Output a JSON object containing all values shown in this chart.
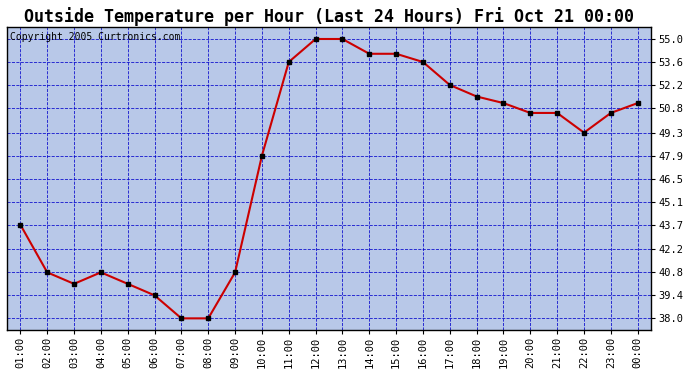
{
  "title": "Outside Temperature per Hour (Last 24 Hours) Fri Oct 21 00:00",
  "copyright": "Copyright 2005 Curtronics.com",
  "hours": [
    "01:00",
    "02:00",
    "03:00",
    "04:00",
    "05:00",
    "06:00",
    "07:00",
    "08:00",
    "09:00",
    "10:00",
    "11:00",
    "12:00",
    "13:00",
    "14:00",
    "15:00",
    "16:00",
    "17:00",
    "18:00",
    "19:00",
    "20:00",
    "21:00",
    "22:00",
    "23:00",
    "00:00"
  ],
  "temps": [
    43.7,
    40.8,
    40.1,
    40.8,
    40.1,
    39.4,
    38.0,
    38.0,
    40.8,
    47.9,
    53.6,
    55.0,
    55.0,
    54.1,
    54.1,
    53.6,
    52.2,
    51.5,
    51.1,
    50.5,
    50.5,
    49.3,
    50.5,
    51.1
  ],
  "line_color": "#cc0000",
  "marker_color": "#000000",
  "bg_color": "#ffffff",
  "plot_bg_color": "#b8c8e8",
  "grid_color": "#0000cc",
  "title_fontsize": 12,
  "copyright_fontsize": 7,
  "yticks": [
    38.0,
    39.4,
    40.8,
    42.2,
    43.7,
    45.1,
    46.5,
    47.9,
    49.3,
    50.8,
    52.2,
    53.6,
    55.0
  ],
  "ylim": [
    37.3,
    55.7
  ],
  "tick_fontsize": 7.5,
  "border_color": "#000000"
}
